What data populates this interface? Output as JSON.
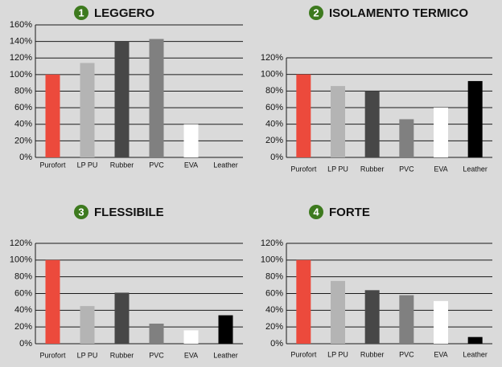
{
  "chart_data": [
    {
      "type": "bar",
      "badge": "1",
      "title": "LEGGERO",
      "categories": [
        "Purofort",
        "LP PU",
        "Rubber",
        "PVC",
        "EVA",
        "Leather"
      ],
      "values": [
        100,
        114,
        140,
        143,
        40,
        0
      ],
      "colors": [
        "#ec4a3c",
        "#b4b4b4",
        "#474747",
        "#808080",
        "#ffffff",
        "#000000"
      ],
      "ylim": [
        0,
        160
      ],
      "yticks": [
        {
          "value": 0,
          "label": "0%"
        },
        {
          "value": 20,
          "label": "20%"
        },
        {
          "value": 40,
          "label": "40%"
        },
        {
          "value": 60,
          "label": "60%"
        },
        {
          "value": 80,
          "label": "80%"
        },
        {
          "value": 100,
          "label": "100%"
        },
        {
          "value": 120,
          "label": "120%"
        },
        {
          "value": 140,
          "label": "140%"
        },
        {
          "value": 160,
          "label": "160%"
        }
      ],
      "grid": true
    },
    {
      "type": "bar",
      "badge": "2",
      "title": "ISOLAMENTO TERMICO",
      "categories": [
        "Purofort",
        "LP PU",
        "Rubber",
        "PVC",
        "EVA",
        "Leather"
      ],
      "values": [
        100,
        86,
        80,
        46,
        60,
        92
      ],
      "colors": [
        "#ec4a3c",
        "#b4b4b4",
        "#474747",
        "#808080",
        "#ffffff",
        "#000000"
      ],
      "ylim": [
        0,
        120
      ],
      "yticks": [
        {
          "value": 0,
          "label": "0%"
        },
        {
          "value": 20,
          "label": "20%"
        },
        {
          "value": 40,
          "label": "40%"
        },
        {
          "value": 60,
          "label": "60%"
        },
        {
          "value": 80,
          "label": "80%"
        },
        {
          "value": 100,
          "label": "100%"
        },
        {
          "value": 120,
          "label": "120%"
        }
      ],
      "grid": true
    },
    {
      "type": "bar",
      "badge": "3",
      "title": "FLESSIBILE",
      "categories": [
        "Purofort",
        "LP PU",
        "Rubber",
        "PVC",
        "EVA",
        "Leather"
      ],
      "values": [
        100,
        45,
        61,
        24,
        16,
        34
      ],
      "colors": [
        "#ec4a3c",
        "#b4b4b4",
        "#474747",
        "#808080",
        "#ffffff",
        "#000000"
      ],
      "ylim": [
        0,
        120
      ],
      "yticks": [
        {
          "value": 0,
          "label": "0%"
        },
        {
          "value": 20,
          "label": "20%"
        },
        {
          "value": 40,
          "label": "40%"
        },
        {
          "value": 60,
          "label": "60%"
        },
        {
          "value": 80,
          "label": "80%"
        },
        {
          "value": 100,
          "label": "100%"
        },
        {
          "value": 120,
          "label": "120%"
        }
      ],
      "grid": true
    },
    {
      "type": "bar",
      "badge": "4",
      "title": "FORTE",
      "categories": [
        "Purofort",
        "LP PU",
        "Rubber",
        "PVC",
        "EVA",
        "Leather"
      ],
      "values": [
        100,
        75,
        64,
        58,
        51,
        8
      ],
      "colors": [
        "#ec4a3c",
        "#b4b4b4",
        "#474747",
        "#808080",
        "#ffffff",
        "#000000"
      ],
      "ylim": [
        0,
        120
      ],
      "yticks": [
        {
          "value": 0,
          "label": "0%"
        },
        {
          "value": 20,
          "label": "20%"
        },
        {
          "value": 40,
          "label": "40%"
        },
        {
          "value": 60,
          "label": "60%"
        },
        {
          "value": 80,
          "label": "80%"
        },
        {
          "value": 100,
          "label": "100%"
        },
        {
          "value": 120,
          "label": "120%"
        }
      ],
      "grid": true
    }
  ]
}
